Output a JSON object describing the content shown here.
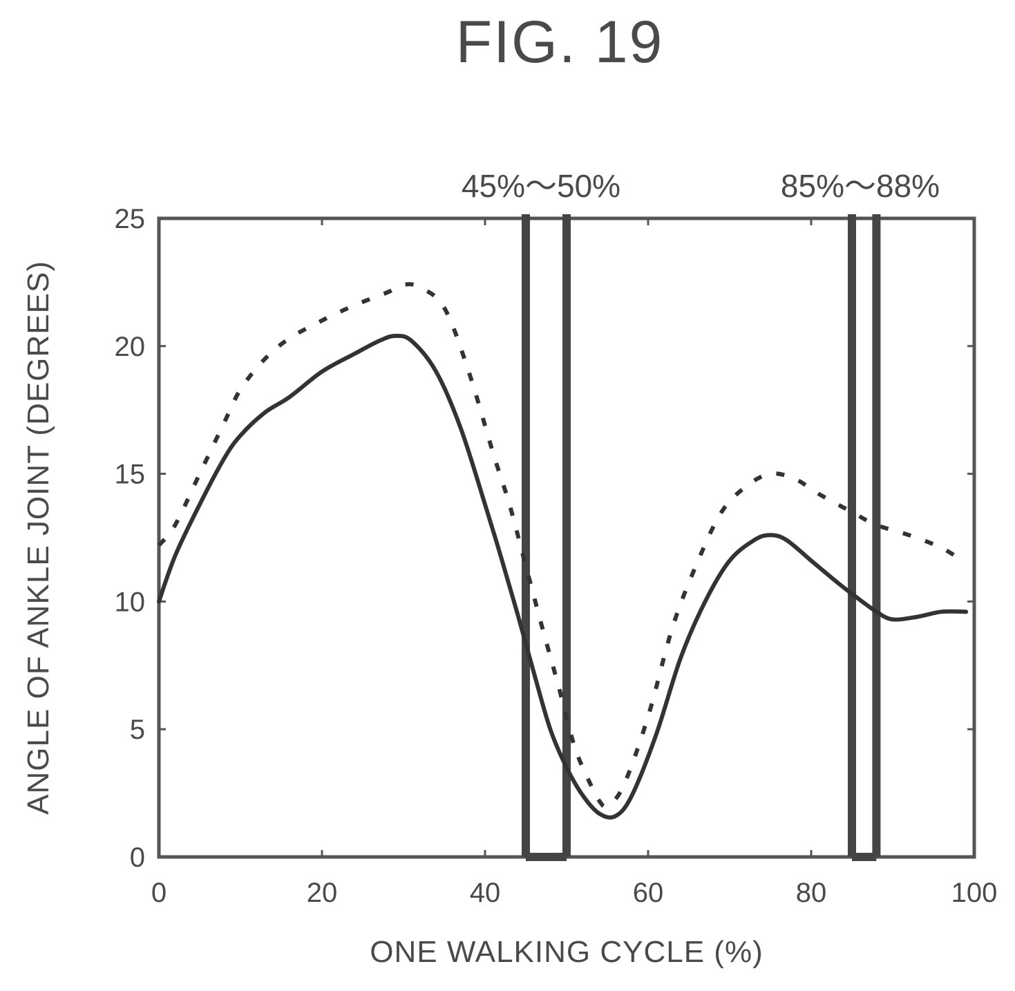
{
  "figure": {
    "title": "FIG. 19"
  },
  "chart_data": {
    "type": "line",
    "xlabel": "ONE WALKING CYCLE (%)",
    "ylabel": "ANGLE OF ANKLE JOINT (DEGREES)",
    "xlim": [
      0,
      100
    ],
    "ylim": [
      0,
      25
    ],
    "xticks": [
      0,
      20,
      40,
      60,
      80,
      100
    ],
    "yticks": [
      0,
      5,
      10,
      15,
      20,
      25
    ],
    "grid": false,
    "highlight_bands": [
      {
        "label": "45%～50%",
        "from": 45,
        "to": 50
      },
      {
        "label": "85%～88%",
        "from": 85,
        "to": 88
      }
    ],
    "series": [
      {
        "style": "dashed",
        "x": [
          0,
          2,
          5,
          8,
          10,
          13,
          16,
          20,
          24,
          28,
          30,
          32,
          35,
          38,
          41,
          43,
          45,
          47,
          49,
          51,
          53,
          54,
          55,
          57,
          60,
          63,
          66,
          69,
          72,
          75,
          78,
          81,
          85,
          88,
          92,
          96,
          99
        ],
        "y": [
          12.2,
          13.0,
          15.0,
          17.0,
          18.3,
          19.5,
          20.3,
          21.0,
          21.6,
          22.1,
          22.4,
          22.3,
          21.5,
          19.0,
          15.8,
          13.8,
          11.4,
          9.0,
          6.7,
          4.3,
          2.8,
          2.2,
          2.0,
          2.8,
          5.5,
          9.0,
          11.5,
          13.5,
          14.5,
          15.0,
          14.8,
          14.2,
          13.5,
          13.0,
          12.6,
          12.1,
          11.5
        ]
      },
      {
        "style": "solid",
        "x": [
          0,
          2,
          5,
          8,
          10,
          13,
          16,
          20,
          24,
          27,
          29,
          31,
          34,
          37,
          40,
          42,
          44,
          46,
          48,
          50,
          52,
          54,
          56,
          58,
          61,
          64,
          67,
          70,
          73,
          75,
          77,
          80,
          83,
          85,
          88,
          90,
          93,
          96,
          99
        ],
        "y": [
          10.0,
          11.8,
          13.8,
          15.6,
          16.5,
          17.4,
          18.0,
          19.0,
          19.7,
          20.2,
          20.4,
          20.2,
          19.0,
          16.8,
          13.8,
          11.7,
          9.5,
          7.2,
          5.0,
          3.5,
          2.4,
          1.7,
          1.6,
          2.4,
          4.8,
          7.8,
          10.0,
          11.6,
          12.4,
          12.6,
          12.4,
          11.6,
          10.8,
          10.3,
          9.6,
          9.3,
          9.4,
          9.6,
          9.6
        ]
      }
    ]
  }
}
